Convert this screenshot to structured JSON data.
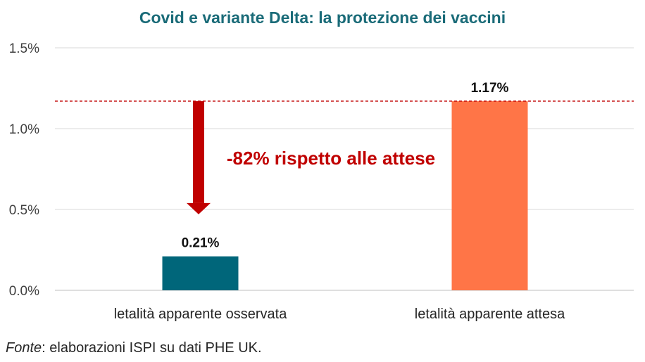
{
  "chart_data": {
    "type": "bar",
    "title": "Covid e variante Delta: la protezione dei vaccini",
    "categories": [
      "letalità apparente osservata",
      "letalità apparente attesa"
    ],
    "values": [
      0.21,
      1.17
    ],
    "data_labels": [
      "0.21%",
      "1.17%"
    ],
    "colors": [
      "#00667a",
      "#ff7547"
    ],
    "ylim": [
      0,
      1.5
    ],
    "yticks": [
      0.0,
      0.5,
      1.0,
      1.5
    ],
    "ytick_labels": [
      "0.0%",
      "0.5%",
      "1.0%",
      "1.5%"
    ],
    "xlabel": "",
    "ylabel": "",
    "grid": true,
    "reference_line": {
      "value": 1.17,
      "color": "#c00000",
      "style": "dashed"
    },
    "annotation": {
      "text": "-82% rispetto alle attese",
      "color": "#c00000"
    },
    "arrow": {
      "from": 1.17,
      "to": 0.47,
      "color": "#c00000"
    }
  },
  "source": {
    "label": "Fonte",
    "text": ": elaborazioni ISPI su dati PHE UK."
  }
}
